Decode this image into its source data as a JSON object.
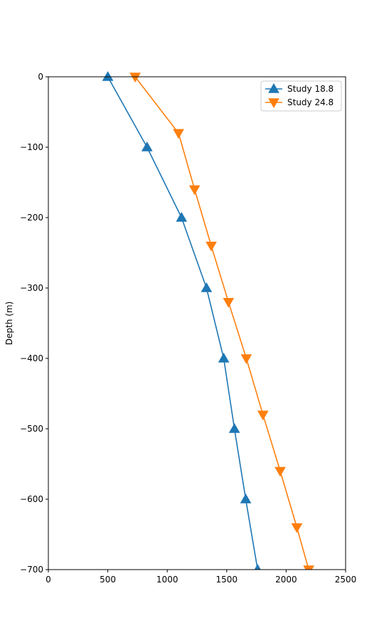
{
  "chart_data": {
    "type": "line",
    "title": "",
    "xlabel": "",
    "ylabel": "Depth (m)",
    "xlim": [
      0,
      2500
    ],
    "ylim": [
      -700,
      0
    ],
    "xticks": [
      0,
      500,
      1000,
      1500,
      2000,
      2500
    ],
    "yticks": [
      0,
      -100,
      -200,
      -300,
      -400,
      -500,
      -600,
      -700
    ],
    "grid": false,
    "legend_position": "top-right",
    "series": [
      {
        "name": "Study 18.8",
        "color": "#1f77b4",
        "marker": "triangle-up",
        "x": [
          500,
          830,
          1120,
          1330,
          1475,
          1565,
          1660,
          1760
        ],
        "y": [
          0,
          -100,
          -200,
          -300,
          -400,
          -500,
          -600,
          -700
        ]
      },
      {
        "name": "Study 24.8",
        "color": "#ff7f0e",
        "marker": "triangle-down",
        "x": [
          730,
          1095,
          1230,
          1370,
          1515,
          1665,
          1805,
          1950,
          2090,
          2190
        ],
        "y": [
          0,
          -80,
          -160,
          -240,
          -320,
          -400,
          -480,
          -560,
          -640,
          -700
        ]
      }
    ]
  }
}
